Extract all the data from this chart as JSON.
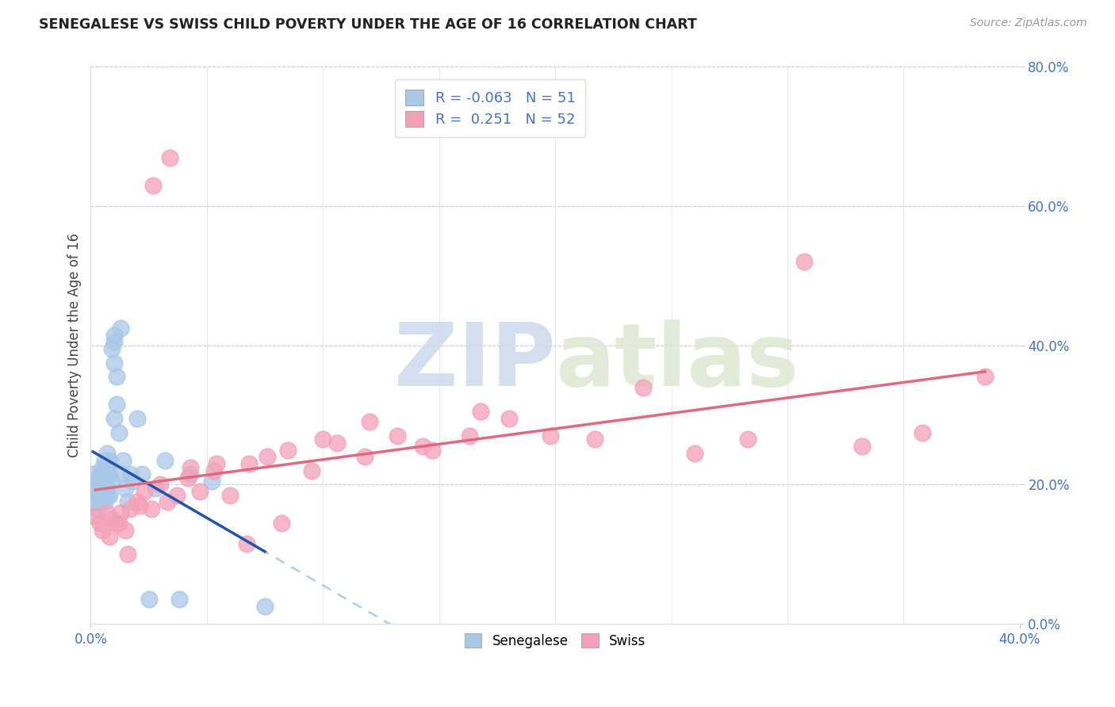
{
  "title": "SENEGALESE VS SWISS CHILD POVERTY UNDER THE AGE OF 16 CORRELATION CHART",
  "source": "Source: ZipAtlas.com",
  "ylabel": "Child Poverty Under the Age of 16",
  "xlim": [
    0.0,
    0.4
  ],
  "ylim": [
    0.0,
    0.8
  ],
  "xticks": [
    0.0,
    0.4
  ],
  "yticks": [
    0.0,
    0.2,
    0.4,
    0.6,
    0.8
  ],
  "xtick_labels": [
    "0.0%",
    "40.0%"
  ],
  "ytick_labels": [
    "0.0%",
    "20.0%",
    "40.0%",
    "60.0%",
    "80.0%"
  ],
  "blue_scatter_color": "#a8c8e8",
  "pink_scatter_color": "#f4a0b8",
  "blue_line_color": "#2255aa",
  "pink_line_color": "#e06880",
  "blue_dash_color": "#b0cce8",
  "legend_R_blue": "R = -0.063",
  "legend_N_blue": "N = 51",
  "legend_R_pink": "R =  0.251",
  "legend_N_pink": "N = 52",
  "watermark_zip": "ZIP",
  "watermark_atlas": "atlas",
  "background_color": "#ffffff",
  "grid_color": "#cccccc",
  "senegalese_x": [
    0.001,
    0.002,
    0.002,
    0.003,
    0.003,
    0.003,
    0.004,
    0.004,
    0.004,
    0.005,
    0.005,
    0.005,
    0.005,
    0.005,
    0.006,
    0.006,
    0.006,
    0.006,
    0.007,
    0.007,
    0.007,
    0.007,
    0.007,
    0.008,
    0.008,
    0.008,
    0.009,
    0.009,
    0.01,
    0.01,
    0.01,
    0.01,
    0.011,
    0.011,
    0.012,
    0.013,
    0.013,
    0.014,
    0.015,
    0.016,
    0.017,
    0.018,
    0.02,
    0.022,
    0.025,
    0.028,
    0.032,
    0.038,
    0.043,
    0.052,
    0.075
  ],
  "senegalese_y": [
    0.215,
    0.175,
    0.195,
    0.165,
    0.185,
    0.205,
    0.195,
    0.175,
    0.215,
    0.205,
    0.225,
    0.195,
    0.185,
    0.215,
    0.175,
    0.235,
    0.205,
    0.195,
    0.185,
    0.215,
    0.245,
    0.195,
    0.225,
    0.185,
    0.235,
    0.215,
    0.205,
    0.395,
    0.415,
    0.375,
    0.405,
    0.295,
    0.355,
    0.315,
    0.275,
    0.425,
    0.215,
    0.235,
    0.195,
    0.175,
    0.215,
    0.205,
    0.295,
    0.215,
    0.035,
    0.195,
    0.235,
    0.035,
    0.215,
    0.205,
    0.025
  ],
  "swiss_x": [
    0.002,
    0.004,
    0.005,
    0.007,
    0.009,
    0.011,
    0.013,
    0.015,
    0.017,
    0.02,
    0.023,
    0.026,
    0.03,
    0.033,
    0.037,
    0.042,
    0.047,
    0.053,
    0.06,
    0.068,
    0.076,
    0.085,
    0.095,
    0.106,
    0.118,
    0.132,
    0.147,
    0.163,
    0.18,
    0.198,
    0.217,
    0.238,
    0.26,
    0.283,
    0.307,
    0.332,
    0.358,
    0.385,
    0.008,
    0.012,
    0.016,
    0.021,
    0.027,
    0.034,
    0.043,
    0.054,
    0.067,
    0.082,
    0.1,
    0.12,
    0.143,
    0.168
  ],
  "swiss_y": [
    0.155,
    0.145,
    0.135,
    0.16,
    0.15,
    0.145,
    0.16,
    0.135,
    0.165,
    0.175,
    0.19,
    0.165,
    0.2,
    0.175,
    0.185,
    0.21,
    0.19,
    0.22,
    0.185,
    0.23,
    0.24,
    0.25,
    0.22,
    0.26,
    0.24,
    0.27,
    0.25,
    0.27,
    0.295,
    0.27,
    0.265,
    0.34,
    0.245,
    0.265,
    0.52,
    0.255,
    0.275,
    0.355,
    0.125,
    0.145,
    0.1,
    0.17,
    0.63,
    0.67,
    0.225,
    0.23,
    0.115,
    0.145,
    0.265,
    0.29,
    0.255,
    0.305
  ]
}
